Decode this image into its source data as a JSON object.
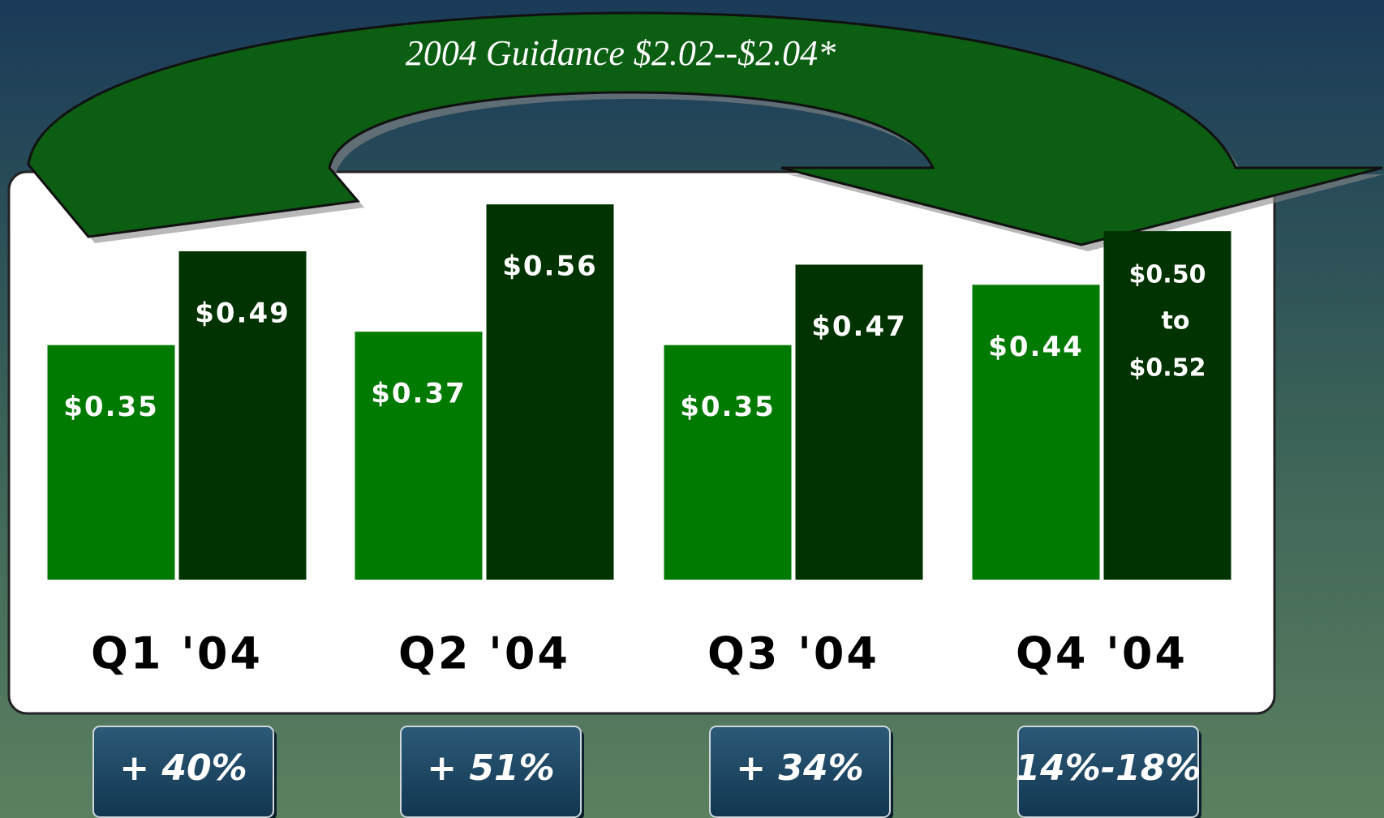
{
  "chart_data": {
    "type": "bar",
    "title": "2004 Guidance $2.02--$2.04*",
    "categories": [
      "Q1 '04",
      "Q2 '04",
      "Q3 '04",
      "Q4 '04"
    ],
    "series": [
      {
        "color": "#007a00",
        "values": [
          0.35,
          0.37,
          0.35,
          0.44
        ],
        "value_labels": [
          "$0.35",
          "$0.37",
          "$0.35",
          "$0.44"
        ]
      },
      {
        "color": "#003300",
        "values": [
          0.49,
          0.56,
          0.47,
          null
        ],
        "value_labels": [
          "$0.49",
          "$0.56",
          "$0.47",
          null
        ]
      }
    ],
    "range": {
      "series": 1,
      "category": 3,
      "low": 0.5,
      "high": 0.52,
      "low_label": "$0.50",
      "joiner": "to",
      "high_label": "$0.52"
    },
    "growth": [
      "+ 40%",
      "+ 51%",
      "+ 34%",
      "14%-18%"
    ],
    "ylim": [
      0,
      0.6
    ]
  }
}
